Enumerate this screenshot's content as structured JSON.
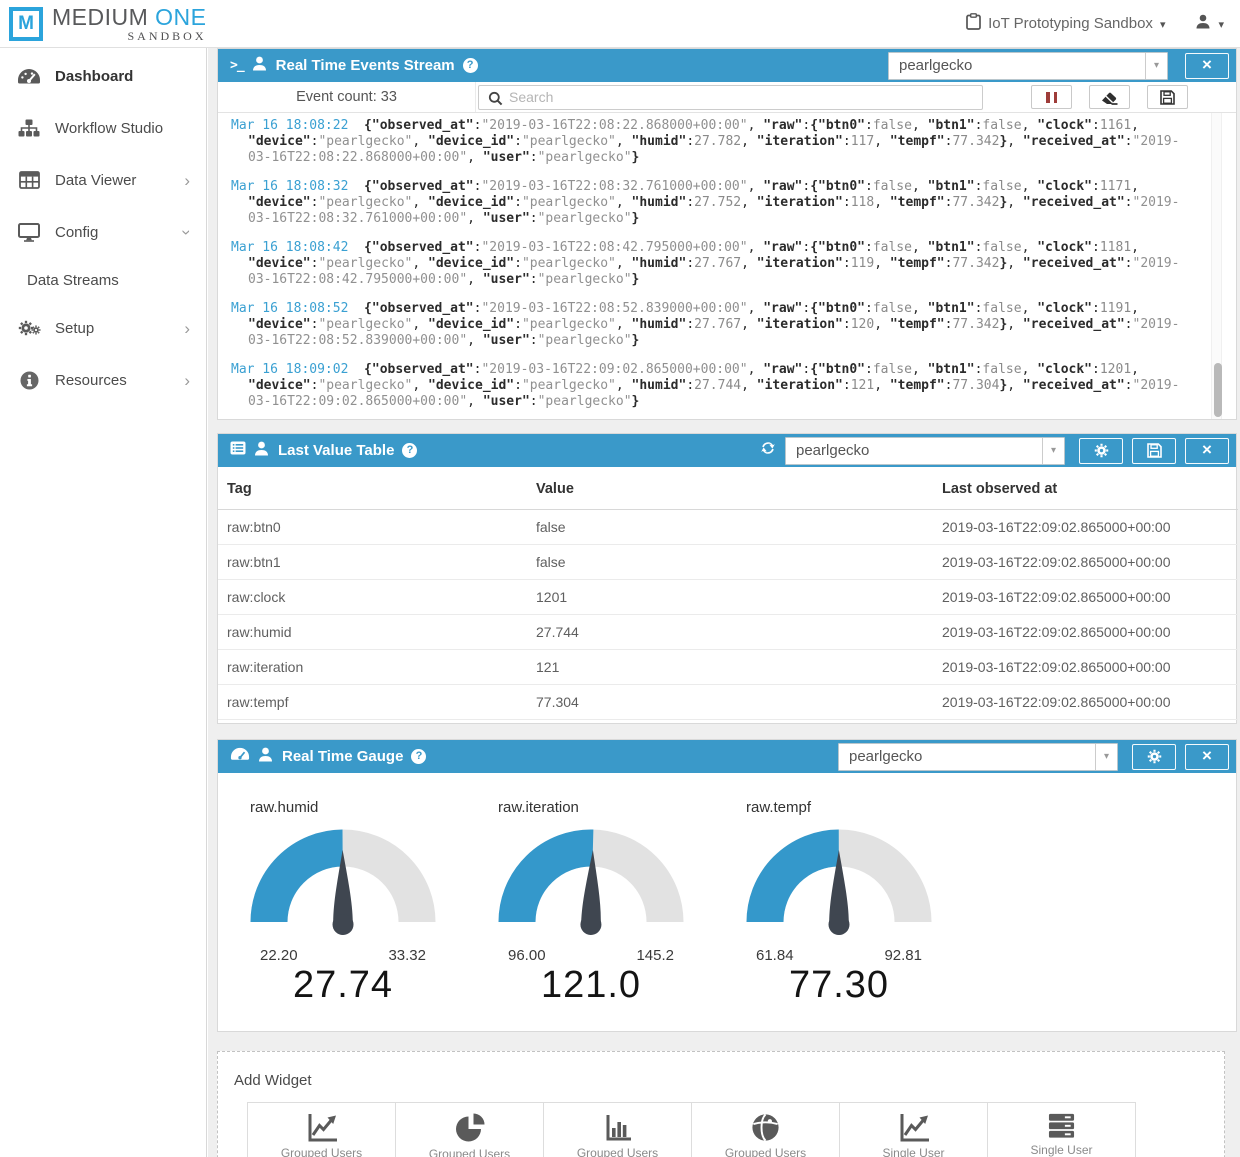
{
  "colors": {
    "header_blue": "#3a99c9",
    "logo_blue": "#2ba4dc",
    "timestamp_blue": "#3aa0d2",
    "pause_red": "#9e3c39",
    "gauge_blue": "#3498cb",
    "gauge_gray": "#e2e2e2",
    "needle_dark": "#3f4650",
    "page_bg": "#efefef"
  },
  "topbar": {
    "logo_letter": "M",
    "brand_primary": "MEDIUM",
    "brand_secondary": "ONE",
    "brand_sub": "SANDBOX",
    "project_label": "IoT Prototyping Sandbox"
  },
  "sidebar": {
    "items": [
      {
        "label": "Dashboard",
        "icon": "dashboard-icon",
        "active": true
      },
      {
        "label": "Workflow Studio",
        "icon": "workflow-icon"
      },
      {
        "label": "Data Viewer",
        "icon": "data-table-icon",
        "chevron": "right"
      },
      {
        "label": "Config",
        "icon": "monitor-icon",
        "chevron": "down"
      },
      {
        "label": "Data Streams",
        "sub_item": true
      },
      {
        "label": "Setup",
        "icon": "gears-icon",
        "chevron": "right"
      },
      {
        "label": "Resources",
        "icon": "info-icon",
        "chevron": "right"
      }
    ]
  },
  "events_widget": {
    "title": "Real Time Events Stream",
    "device_select": "pearlgecko",
    "event_count_label": "Event count:",
    "event_count": "33",
    "search_placeholder": "Search",
    "events": [
      {
        "time": "Mar 16 18:08:22",
        "observed_at": "2019-03-16T22:08:22.868000+00:00",
        "btn0": "false",
        "btn1": "false",
        "clock": "1161",
        "device": "pearlgecko",
        "device_id": "pearlgecko",
        "humid": "27.782",
        "iteration": "117",
        "tempf": "77.342",
        "received_at": "2019-03-16T22:08:22.868000+00:00",
        "user": "pearlgecko"
      },
      {
        "time": "Mar 16 18:08:32",
        "observed_at": "2019-03-16T22:08:32.761000+00:00",
        "btn0": "false",
        "btn1": "false",
        "clock": "1171",
        "device": "pearlgecko",
        "device_id": "pearlgecko",
        "humid": "27.752",
        "iteration": "118",
        "tempf": "77.342",
        "received_at": "2019-03-16T22:08:32.761000+00:00",
        "user": "pearlgecko"
      },
      {
        "time": "Mar 16 18:08:42",
        "observed_at": "2019-03-16T22:08:42.795000+00:00",
        "btn0": "false",
        "btn1": "false",
        "clock": "1181",
        "device": "pearlgecko",
        "device_id": "pearlgecko",
        "humid": "27.767",
        "iteration": "119",
        "tempf": "77.342",
        "received_at": "2019-03-16T22:08:42.795000+00:00",
        "user": "pearlgecko"
      },
      {
        "time": "Mar 16 18:08:52",
        "observed_at": "2019-03-16T22:08:52.839000+00:00",
        "btn0": "false",
        "btn1": "false",
        "clock": "1191",
        "device": "pearlgecko",
        "device_id": "pearlgecko",
        "humid": "27.767",
        "iteration": "120",
        "tempf": "77.342",
        "received_at": "2019-03-16T22:08:52.839000+00:00",
        "user": "pearlgecko"
      },
      {
        "time": "Mar 16 18:09:02",
        "observed_at": "2019-03-16T22:09:02.865000+00:00",
        "btn0": "false",
        "btn1": "false",
        "clock": "1201",
        "device": "pearlgecko",
        "device_id": "pearlgecko",
        "humid": "27.744",
        "iteration": "121",
        "tempf": "77.304",
        "received_at": "2019-03-16T22:09:02.865000+00:00",
        "user": "pearlgecko"
      }
    ]
  },
  "last_value_widget": {
    "title": "Last Value Table",
    "device_select": "pearlgecko",
    "columns": [
      "Tag",
      "Value",
      "Last observed at"
    ],
    "rows": [
      {
        "tag": "raw:btn0",
        "value": "false",
        "last_observed": "2019-03-16T22:09:02.865000+00:00"
      },
      {
        "tag": "raw:btn1",
        "value": "false",
        "last_observed": "2019-03-16T22:09:02.865000+00:00"
      },
      {
        "tag": "raw:clock",
        "value": "1201",
        "last_observed": "2019-03-16T22:09:02.865000+00:00"
      },
      {
        "tag": "raw:humid",
        "value": "27.744",
        "last_observed": "2019-03-16T22:09:02.865000+00:00"
      },
      {
        "tag": "raw:iteration",
        "value": "121",
        "last_observed": "2019-03-16T22:09:02.865000+00:00"
      },
      {
        "tag": "raw:tempf",
        "value": "77.304",
        "last_observed": "2019-03-16T22:09:02.865000+00:00"
      }
    ]
  },
  "gauge_widget": {
    "title": "Real Time Gauge",
    "device_select": "pearlgecko"
  },
  "chart_data": [
    {
      "type": "gauge",
      "title": "raw.humid",
      "min": 22.2,
      "max": 33.32,
      "value": 27.74,
      "min_label": "22.20",
      "max_label": "33.32",
      "value_label": "27.74"
    },
    {
      "type": "gauge",
      "title": "raw.iteration",
      "min": 96.0,
      "max": 145.2,
      "value": 121.0,
      "min_label": "96.00",
      "max_label": "145.2",
      "value_label": "121.0"
    },
    {
      "type": "gauge",
      "title": "raw.tempf",
      "min": 61.84,
      "max": 92.81,
      "value": 77.3,
      "min_label": "61.84",
      "max_label": "92.81",
      "value_label": "77.30"
    }
  ],
  "add_widget": {
    "title": "Add Widget",
    "items": [
      {
        "icon": "line-chart-icon",
        "label": "Grouped Users"
      },
      {
        "icon": "pie-chart-icon",
        "label": "Grouped Users"
      },
      {
        "icon": "bar-chart-icon",
        "label": "Grouped Users"
      },
      {
        "icon": "globe-icon",
        "label": "Grouped Users"
      },
      {
        "icon": "line-chart-icon",
        "label": "Single User"
      },
      {
        "icon": "server-icon",
        "label": "Single User"
      }
    ]
  }
}
